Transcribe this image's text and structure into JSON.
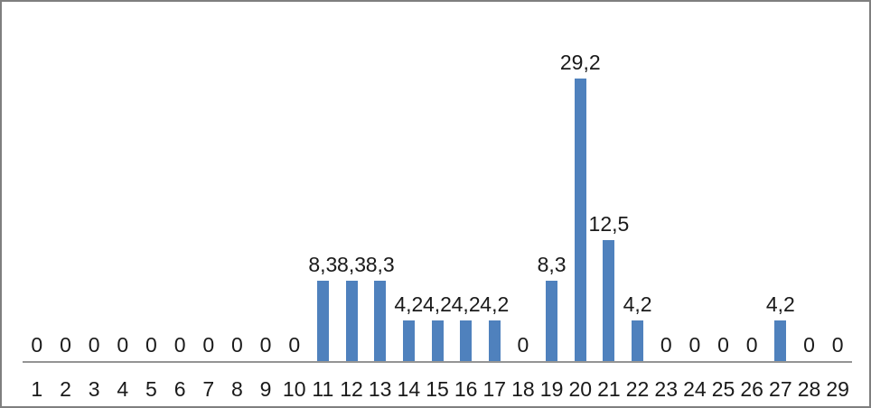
{
  "chart": {
    "background": "#FFFFFF",
    "frame_border_color": "#7F7F7F"
  },
  "chart_data": {
    "type": "bar",
    "title": "",
    "xlabel": "",
    "ylabel": "",
    "categories": [
      "1",
      "2",
      "3",
      "4",
      "5",
      "6",
      "7",
      "8",
      "9",
      "10",
      "11",
      "12",
      "13",
      "14",
      "15",
      "16",
      "17",
      "18",
      "19",
      "20",
      "21",
      "22",
      "23",
      "24",
      "25",
      "26",
      "27",
      "28",
      "29"
    ],
    "values": [
      0,
      0,
      0,
      0,
      0,
      0,
      0,
      0,
      0,
      0,
      8.3,
      8.3,
      8.3,
      4.2,
      4.2,
      4.2,
      4.2,
      0,
      8.3,
      29.2,
      12.5,
      4.2,
      0,
      0,
      0,
      0,
      4.2,
      0,
      0
    ],
    "value_labels": [
      "0",
      "0",
      "0",
      "0",
      "0",
      "0",
      "0",
      "0",
      "0",
      "0",
      "8,3",
      "8,3",
      "8,3",
      "4,2",
      "4,2",
      "4,2",
      "4,2",
      "0",
      "8,3",
      "29,2",
      "12,5",
      "4,2",
      "0",
      "0",
      "0",
      "0",
      "4,2",
      "0",
      "0"
    ],
    "ylim": [
      0,
      35
    ],
    "grid": false,
    "legend": false,
    "y_axis_visible": false,
    "data_label_position": "above-bar",
    "decimal_separator": ",",
    "bar_color": "#4F81BD",
    "axis_line_color": "#949494",
    "label_color": "#1A1A1A"
  }
}
